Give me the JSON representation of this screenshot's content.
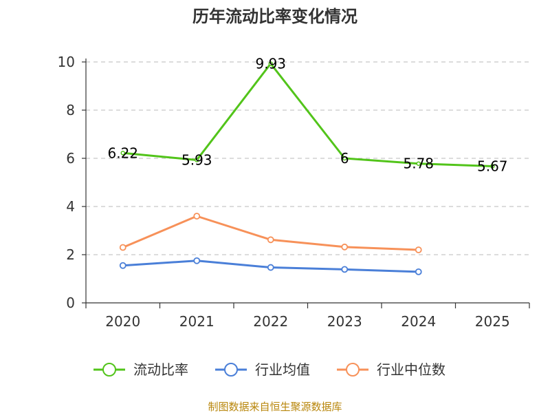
{
  "chart_data": {
    "type": "line",
    "title": "历年流动比率变化情况",
    "categories": [
      "2020",
      "2021",
      "2022",
      "2023",
      "2024",
      "2025"
    ],
    "ylim": [
      0,
      10
    ],
    "yticks": [
      "0",
      "2",
      "4",
      "6",
      "8",
      "10"
    ],
    "grid": true,
    "legend_position": "bottom",
    "series": [
      {
        "name": "流动比率",
        "color": "#52c41a",
        "values": [
          6.22,
          5.93,
          9.93,
          6.0,
          5.78,
          5.67
        ],
        "labels": [
          "6.22",
          "5.93",
          "9.93",
          "6",
          "5.78",
          "5.67"
        ]
      },
      {
        "name": "行业均值",
        "color": "#4a7fd8",
        "values": [
          1.55,
          1.75,
          1.47,
          1.39,
          1.29,
          null
        ]
      },
      {
        "name": "行业中位数",
        "color": "#f79159",
        "values": [
          2.3,
          3.6,
          2.62,
          2.32,
          2.2,
          null
        ]
      }
    ],
    "source": "制图数据来自恒生聚源数据库"
  }
}
